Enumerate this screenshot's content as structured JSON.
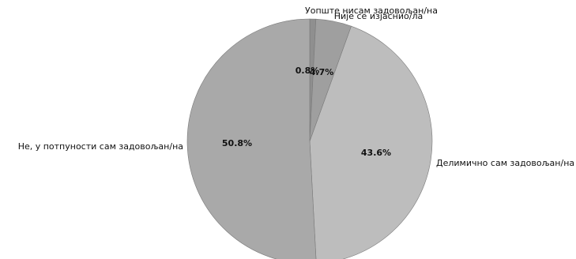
{
  "chart_data": {
    "type": "pie",
    "title": "",
    "slices": [
      {
        "label": "Уопште нисам задовољан/на",
        "percent_label": "0.8%",
        "value": 0.8,
        "color": "#8f8f8f"
      },
      {
        "label": "Није се изјаснио/ла",
        "percent_label": "4.7%",
        "value": 4.7,
        "color": "#9f9f9f"
      },
      {
        "label": "Делимично сам задовољан/на",
        "percent_label": "43.6%",
        "value": 43.6,
        "color": "#bdbdbd"
      },
      {
        "label": "Не, у потпуности сам задовољан/на",
        "percent_label": "50.8%",
        "value": 50.8,
        "color": "#a9a9a9"
      }
    ],
    "start_angle": "top",
    "direction": "clockwise",
    "legend": "none"
  }
}
